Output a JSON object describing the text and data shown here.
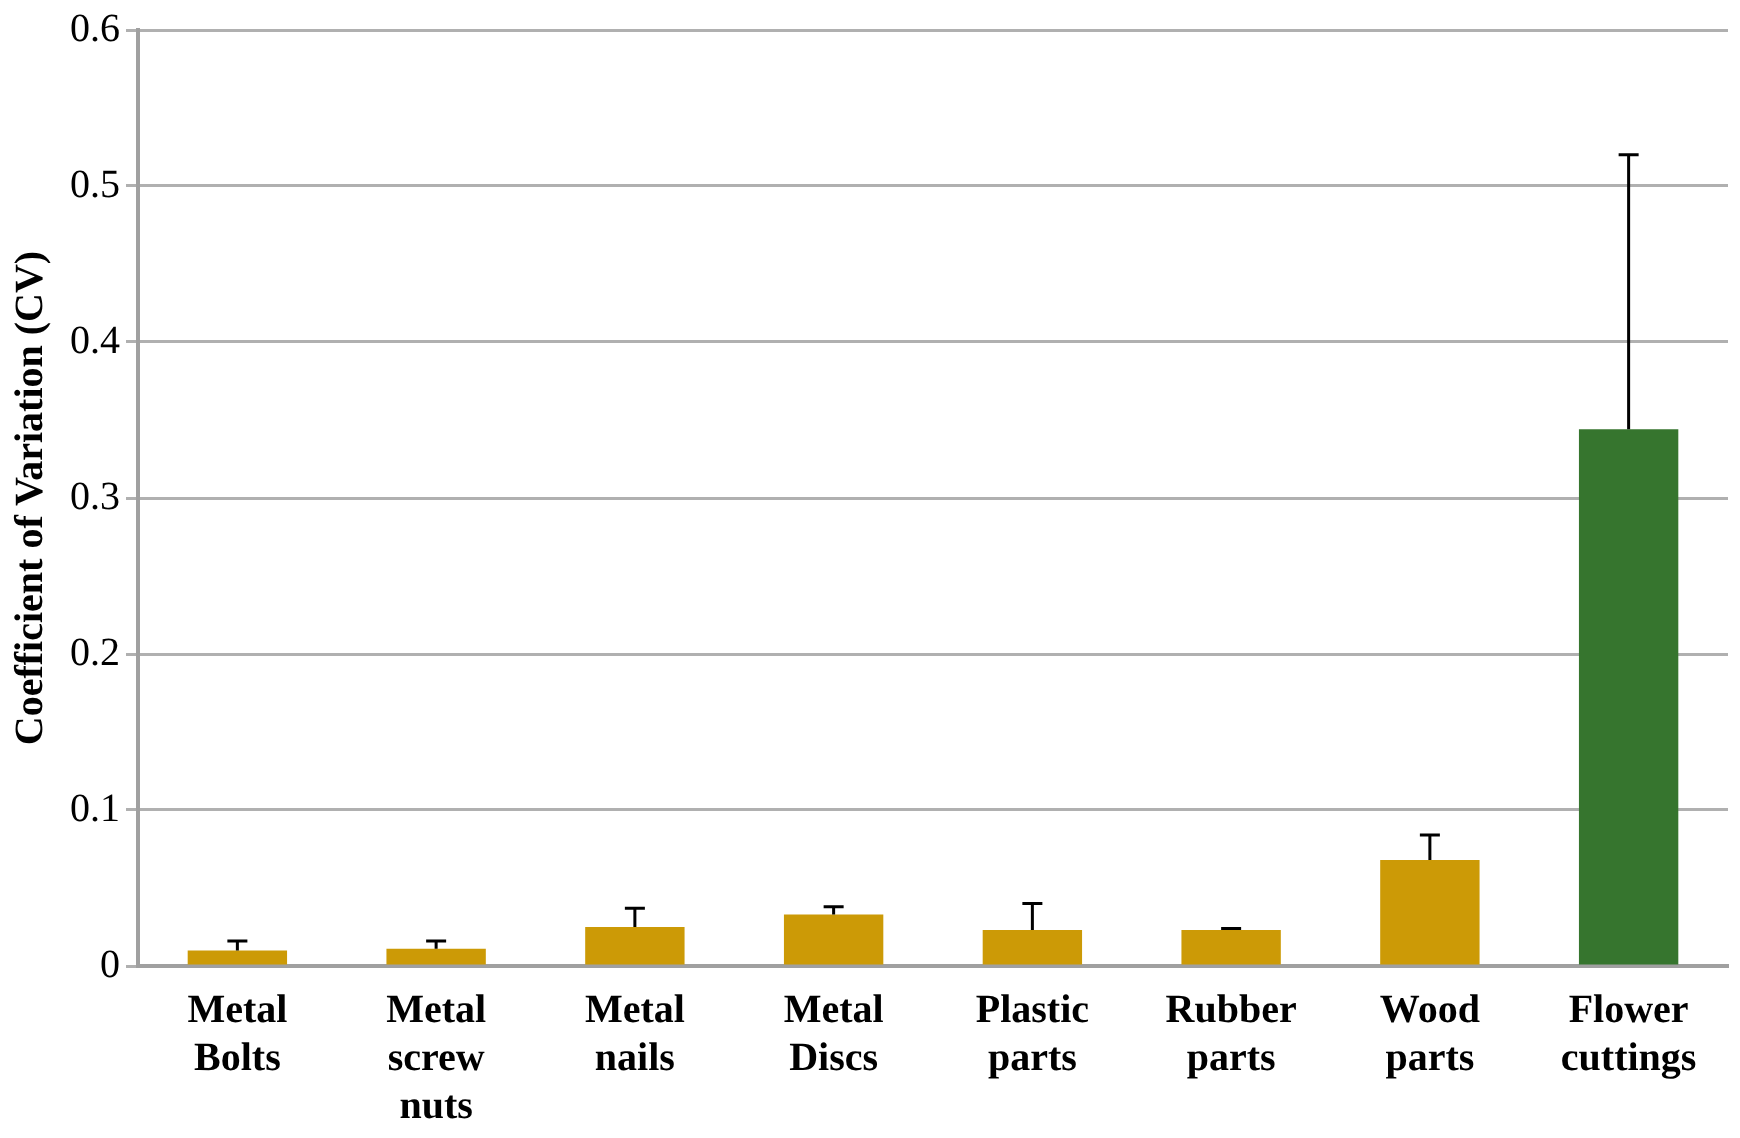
{
  "chart_data": {
    "type": "bar",
    "ylabel": "Coefficient of Variation (CV)",
    "categories": [
      "Metal Bolts",
      "Metal screw nuts",
      "Metal nails",
      "Metal Discs",
      "Plastic parts",
      "Rubber parts",
      "Wood parts",
      "Flower cuttings"
    ],
    "values": [
      0.01,
      0.011,
      0.025,
      0.033,
      0.023,
      0.023,
      0.068,
      0.344
    ],
    "colors": [
      "#cc9a06",
      "#cc9a06",
      "#cc9a06",
      "#cc9a06",
      "#cc9a06",
      "#cc9a06",
      "#cc9a06",
      "#36752e"
    ],
    "errors": [
      [
        0.01,
        0.016
      ],
      [
        0.011,
        0.016
      ],
      [
        0.025,
        0.037
      ],
      [
        0.033,
        0.038
      ],
      [
        0.023,
        0.04
      ],
      [
        0.023,
        0.024
      ],
      [
        0.068,
        0.084
      ],
      [
        0.344,
        0.52
      ]
    ],
    "ylim": [
      0,
      0.6
    ],
    "yticks": [
      0,
      0.1,
      0.2,
      0.3,
      0.4,
      0.5,
      0.6
    ],
    "grid": "y",
    "legend": false
  }
}
